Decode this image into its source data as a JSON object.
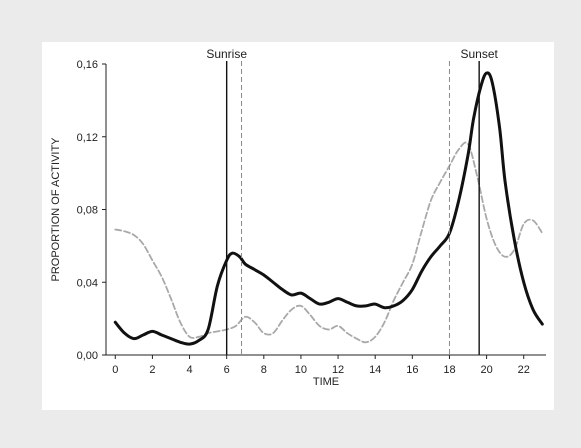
{
  "chart_data": {
    "type": "line",
    "title": "",
    "xlabel": "TIME",
    "ylabel": "PROPORTION OF ACTIVITY",
    "xlim": [
      -0.5,
      23.2
    ],
    "ylim": [
      0,
      0.16
    ],
    "xticks": [
      0,
      2,
      4,
      6,
      8,
      10,
      12,
      14,
      16,
      18,
      20,
      22
    ],
    "xtick_labels": [
      "0",
      "2",
      "4",
      "6",
      "8",
      "10",
      "12",
      "14",
      "16",
      "18",
      "20",
      "22"
    ],
    "yticks": [
      0,
      0.04,
      0.08,
      0.12,
      0.16
    ],
    "ytick_labels": [
      "0,00",
      "0,04",
      "0,08",
      "0,12",
      "0,16"
    ],
    "grid": false,
    "series": [
      {
        "style": "solid-black-thick",
        "color": "#111111",
        "x": [
          0,
          0.5,
          1,
          1.5,
          2,
          2.5,
          3,
          3.5,
          4,
          4.5,
          5,
          5.5,
          6,
          6.3,
          6.7,
          7,
          7.5,
          8,
          8.5,
          9,
          9.5,
          10,
          10.5,
          11,
          11.5,
          12,
          12.5,
          13,
          13.5,
          14,
          14.5,
          15,
          15.5,
          16,
          16.5,
          17,
          17.5,
          18,
          18.5,
          19,
          19.3,
          19.7,
          20,
          20.3,
          20.7,
          21,
          21.5,
          22,
          22.5,
          23
        ],
        "y": [
          0.018,
          0.012,
          0.009,
          0.011,
          0.013,
          0.011,
          0.009,
          0.007,
          0.006,
          0.008,
          0.014,
          0.038,
          0.052,
          0.056,
          0.054,
          0.05,
          0.047,
          0.044,
          0.04,
          0.036,
          0.033,
          0.034,
          0.031,
          0.028,
          0.029,
          0.031,
          0.029,
          0.027,
          0.027,
          0.028,
          0.026,
          0.027,
          0.03,
          0.036,
          0.046,
          0.054,
          0.06,
          0.067,
          0.085,
          0.11,
          0.13,
          0.148,
          0.155,
          0.15,
          0.125,
          0.095,
          0.063,
          0.04,
          0.025,
          0.017
        ]
      },
      {
        "style": "dashed-gray",
        "color": "#a9a9a9",
        "x": [
          0,
          0.5,
          1,
          1.5,
          2,
          2.5,
          3,
          3.5,
          4,
          4.5,
          5,
          5.5,
          6,
          6.5,
          7,
          7.5,
          8,
          8.5,
          9,
          9.5,
          10,
          10.5,
          11,
          11.5,
          12,
          12.5,
          13,
          13.5,
          14,
          14.5,
          15,
          15.5,
          16,
          16.5,
          17,
          17.5,
          18,
          18.5,
          19,
          19.5,
          20,
          20.5,
          21,
          21.5,
          22,
          22.5,
          23
        ],
        "y": [
          0.069,
          0.068,
          0.066,
          0.061,
          0.052,
          0.043,
          0.031,
          0.018,
          0.01,
          0.01,
          0.012,
          0.013,
          0.014,
          0.016,
          0.021,
          0.018,
          0.012,
          0.012,
          0.019,
          0.025,
          0.027,
          0.022,
          0.016,
          0.014,
          0.016,
          0.012,
          0.009,
          0.007,
          0.01,
          0.018,
          0.03,
          0.04,
          0.05,
          0.068,
          0.085,
          0.095,
          0.104,
          0.113,
          0.116,
          0.098,
          0.075,
          0.06,
          0.054,
          0.058,
          0.072,
          0.074,
          0.067
        ]
      }
    ],
    "vertical_lines": [
      {
        "x": 6.0,
        "style": "solid",
        "label": "Sunrise"
      },
      {
        "x": 6.8,
        "style": "dashed",
        "label": ""
      },
      {
        "x": 18.0,
        "style": "dashed",
        "label": ""
      },
      {
        "x": 19.6,
        "style": "solid",
        "label": "Sunset"
      }
    ]
  }
}
